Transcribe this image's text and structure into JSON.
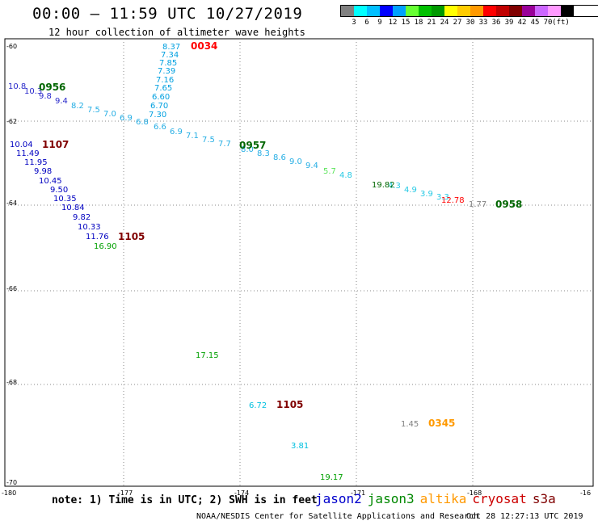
{
  "header": {
    "title": "00:00 – 11:59 UTC 10/27/2019",
    "subtitle": "12 hour collection of altimeter wave heights"
  },
  "legend": {
    "colors": [
      "#808080",
      "#00ffff",
      "#00bfff",
      "#0000ff",
      "#00a0ff",
      "#66ff33",
      "#00c000",
      "#009900",
      "#ffff00",
      "#ffcc00",
      "#ff9900",
      "#ff0000",
      "#c00000",
      "#800000",
      "#990099",
      "#cc66ff",
      "#ff99ff",
      "#000000"
    ],
    "labels": [
      "3",
      "6",
      "9",
      "12",
      "15",
      "18",
      "21",
      "24",
      "27",
      "30",
      "33",
      "36",
      "39",
      "42",
      "45",
      "70",
      "(ft)"
    ]
  },
  "axes": {
    "lon_labels": [
      "-180",
      "-177",
      "-174",
      "-171",
      "-168",
      "-16"
    ],
    "lat_labels": [
      "-60",
      "-62",
      "-64",
      "-66",
      "-68",
      "-70"
    ]
  },
  "time_labels": [
    {
      "text": "0034",
      "color": "#ff0000"
    },
    {
      "text": "0956",
      "color": "#006600"
    },
    {
      "text": "1107",
      "color": "#800000"
    },
    {
      "text": "0957",
      "color": "#006600"
    },
    {
      "text": "0958",
      "color": "#006600"
    },
    {
      "text": "1105",
      "color": "#800000"
    },
    {
      "text": "1105",
      "color": "#800000"
    },
    {
      "text": "0345",
      "color": "#ff9900"
    }
  ],
  "wave_values": [
    {
      "text": "8.37",
      "color": "#00a0e0"
    },
    {
      "text": "7.34",
      "color": "#00a0e0"
    },
    {
      "text": "7.85",
      "color": "#00a0e0"
    },
    {
      "text": "7.39",
      "color": "#00a0e0"
    },
    {
      "text": "7.16",
      "color": "#00a0e0"
    },
    {
      "text": "7.65",
      "color": "#00a0e0"
    },
    {
      "text": "6.60",
      "color": "#00a0e0"
    },
    {
      "text": "6.70",
      "color": "#00a0e0"
    },
    {
      "text": "7.30",
      "color": "#00a0e0"
    },
    {
      "text": "10.04",
      "color": "#0000c0"
    },
    {
      "text": "11.49",
      "color": "#0000c0"
    },
    {
      "text": "11.95",
      "color": "#0000c0"
    },
    {
      "text": "9.98",
      "color": "#0000c0"
    },
    {
      "text": "10.45",
      "color": "#0000c0"
    },
    {
      "text": "9.50",
      "color": "#0000c0"
    },
    {
      "text": "10.35",
      "color": "#0000c0"
    },
    {
      "text": "10.84",
      "color": "#0000c0"
    },
    {
      "text": "9.82",
      "color": "#0000c0"
    },
    {
      "text": "10.33",
      "color": "#0000c0"
    },
    {
      "text": "11.76",
      "color": "#0000c0"
    },
    {
      "text": "16.90",
      "color": "#00a000"
    },
    {
      "text": "19.82",
      "color": "#006600"
    },
    {
      "text": "12.78",
      "color": "#ff0000"
    },
    {
      "text": "1.77",
      "color": "#808080"
    },
    {
      "text": "17.15",
      "color": "#00a000"
    },
    {
      "text": "6.72",
      "color": "#00c0e0"
    },
    {
      "text": "1.45",
      "color": "#808080"
    },
    {
      "text": "3.81",
      "color": "#00c0e0"
    },
    {
      "text": "19.17",
      "color": "#00a000"
    }
  ],
  "footer": {
    "note": "note: 1) Time is in UTC; 2) SWH is in feet",
    "satellites": [
      {
        "name": "jason2",
        "color": "#0000cc"
      },
      {
        "name": "jason3",
        "color": "#008800"
      },
      {
        "name": "altika",
        "color": "#ff9900"
      },
      {
        "name": "cryosat",
        "color": "#cc0000"
      },
      {
        "name": "s3a",
        "color": "#800000"
      }
    ],
    "credit": "NOAA/NESDIS Center for Satellite Applications and Research",
    "timestamp": "Oct 28 12:27:13 UTC 2019"
  }
}
